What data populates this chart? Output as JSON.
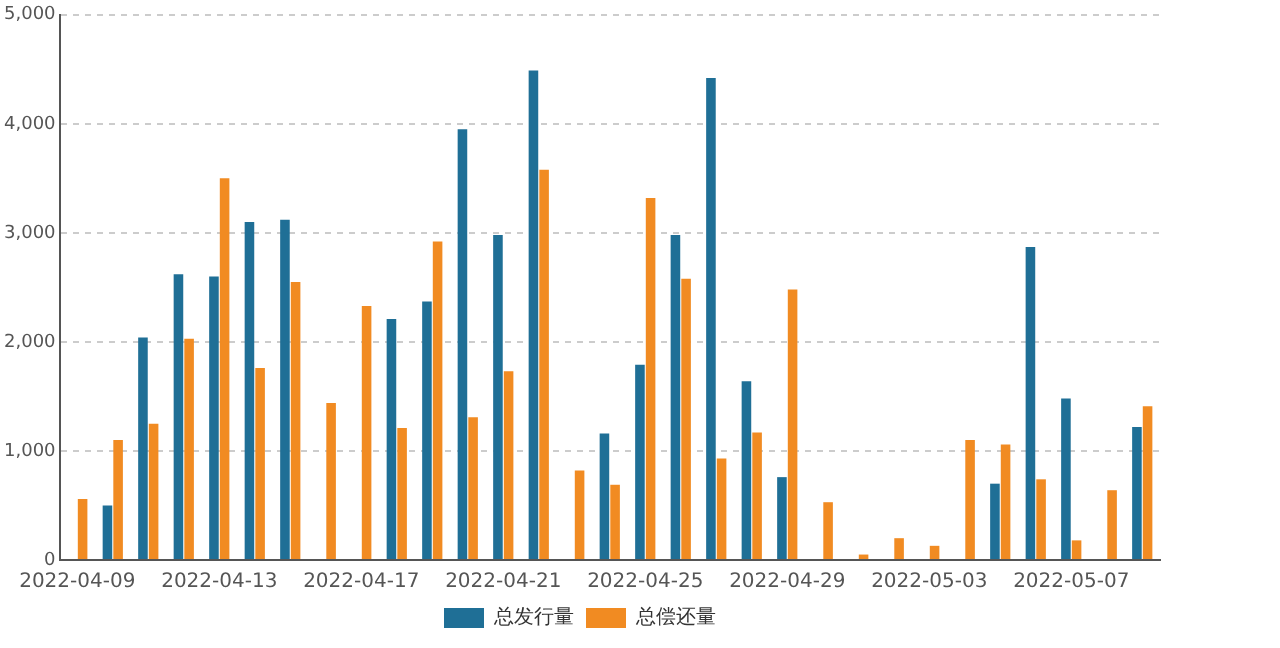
{
  "chart_data": {
    "type": "bar",
    "categories": [
      "2022-04-09",
      null,
      null,
      null,
      "2022-04-13",
      null,
      null,
      null,
      "2022-04-17",
      null,
      null,
      null,
      "2022-04-21",
      null,
      null,
      null,
      "2022-04-25",
      null,
      null,
      null,
      "2022-04-29",
      null,
      null,
      null,
      "2022-05-03",
      null,
      null,
      null,
      "2022-05-07",
      null,
      null
    ],
    "series": [
      {
        "name": "总发行量",
        "color": "#1f6f96",
        "values": [
          null,
          500,
          2040,
          2620,
          2600,
          3100,
          3120,
          null,
          null,
          2210,
          2370,
          3950,
          2980,
          4490,
          null,
          1160,
          1790,
          2980,
          4420,
          1640,
          760,
          null,
          null,
          null,
          null,
          null,
          700,
          2870,
          1480,
          null,
          1220
        ]
      },
      {
        "name": "总偿还量",
        "color": "#f18b22",
        "values": [
          560,
          1100,
          1250,
          2030,
          3500,
          1760,
          2550,
          1440,
          2330,
          1210,
          2920,
          1310,
          1730,
          3580,
          820,
          690,
          3320,
          2580,
          930,
          1170,
          2480,
          530,
          50,
          200,
          130,
          1100,
          1060,
          740,
          180,
          640,
          1410
        ]
      }
    ],
    "ylim": [
      0,
      5000
    ],
    "yticks": [
      0,
      {
        "value": 1000,
        "label": "1,000"
      },
      {
        "value": 2000,
        "label": "2,000"
      },
      {
        "value": 3000,
        "label": "3,000"
      },
      {
        "value": 4000,
        "label": "4,000"
      },
      {
        "value": 5000,
        "label": "5,000"
      }
    ],
    "grid": "y",
    "legend": "bottom"
  }
}
